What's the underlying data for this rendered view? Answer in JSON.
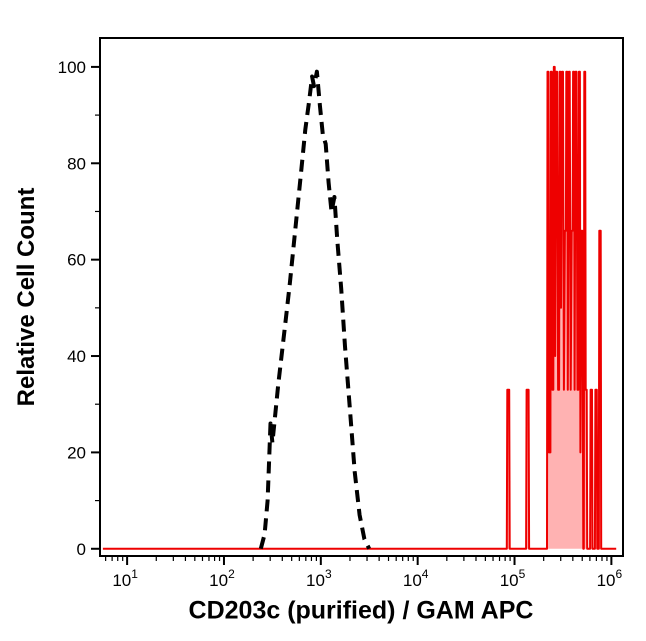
{
  "chart_data": {
    "type": "line",
    "title": "",
    "xlabel": "CD203c (purified) / GAM APC",
    "ylabel": "Relative Cell Count",
    "x_scale": "log10",
    "x_ticks_exponents": [
      1,
      2,
      3,
      4,
      5,
      6
    ],
    "y_ticks": [
      0,
      20,
      40,
      60,
      80,
      100
    ],
    "y_minor_ticks": [
      10,
      30,
      50,
      70,
      90
    ],
    "xlim_log10": [
      0.72,
      6.12
    ],
    "ylim": [
      -1.5,
      106
    ],
    "grid": false,
    "legend": "none",
    "axis_color": "#000000",
    "series": [
      {
        "name": "red_filled_stained_sample",
        "color": "#ee0000",
        "width": 2,
        "dash": null,
        "fill": "rgba(255,0,0,0.3)",
        "points": [
          [
            0.75,
            0
          ],
          [
            4.9,
            0
          ],
          [
            4.92,
            0
          ],
          [
            4.925,
            33
          ],
          [
            4.945,
            33
          ],
          [
            4.95,
            0
          ],
          [
            5.12,
            0
          ],
          [
            5.125,
            33
          ],
          [
            5.145,
            33
          ],
          [
            5.15,
            0
          ],
          [
            5.32,
            0
          ],
          [
            5.335,
            0
          ],
          [
            5.34,
            99
          ],
          [
            5.35,
            99
          ],
          [
            5.355,
            20
          ],
          [
            5.37,
            20
          ],
          [
            5.375,
            99
          ],
          [
            5.385,
            99
          ],
          [
            5.39,
            33
          ],
          [
            5.4,
            33
          ],
          [
            5.405,
            100
          ],
          [
            5.415,
            100
          ],
          [
            5.42,
            40
          ],
          [
            5.43,
            99
          ],
          [
            5.44,
            99
          ],
          [
            5.45,
            33
          ],
          [
            5.46,
            33
          ],
          [
            5.465,
            99
          ],
          [
            5.475,
            99
          ],
          [
            5.48,
            50
          ],
          [
            5.49,
            99
          ],
          [
            5.5,
            99
          ],
          [
            5.51,
            33
          ],
          [
            5.52,
            66
          ],
          [
            5.53,
            66
          ],
          [
            5.535,
            99
          ],
          [
            5.545,
            99
          ],
          [
            5.55,
            33
          ],
          [
            5.56,
            99
          ],
          [
            5.57,
            99
          ],
          [
            5.58,
            33
          ],
          [
            5.59,
            66
          ],
          [
            5.6,
            66
          ],
          [
            5.605,
            99
          ],
          [
            5.615,
            99
          ],
          [
            5.62,
            33
          ],
          [
            5.63,
            99
          ],
          [
            5.64,
            99
          ],
          [
            5.65,
            33
          ],
          [
            5.66,
            33
          ],
          [
            5.665,
            99
          ],
          [
            5.675,
            99
          ],
          [
            5.68,
            20
          ],
          [
            5.69,
            66
          ],
          [
            5.7,
            66
          ],
          [
            5.71,
            0
          ],
          [
            5.715,
            0
          ],
          [
            5.72,
            99
          ],
          [
            5.73,
            99
          ],
          [
            5.735,
            33
          ],
          [
            5.745,
            33
          ],
          [
            5.75,
            0
          ],
          [
            5.78,
            0
          ],
          [
            5.785,
            33
          ],
          [
            5.8,
            33
          ],
          [
            5.805,
            0
          ],
          [
            5.83,
            0
          ],
          [
            5.835,
            33
          ],
          [
            5.85,
            33
          ],
          [
            5.855,
            0
          ],
          [
            5.87,
            0
          ],
          [
            5.875,
            66
          ],
          [
            5.89,
            66
          ],
          [
            5.895,
            0
          ],
          [
            6.05,
            0
          ]
        ]
      },
      {
        "name": "black_dashed_control",
        "color": "#000000",
        "width": 4,
        "dash": [
          12,
          7
        ],
        "fill": "none",
        "points": [
          [
            2.38,
            0
          ],
          [
            2.42,
            3
          ],
          [
            2.45,
            10
          ],
          [
            2.48,
            26
          ],
          [
            2.5,
            22
          ],
          [
            2.53,
            28
          ],
          [
            2.56,
            34
          ],
          [
            2.6,
            41
          ],
          [
            2.64,
            48
          ],
          [
            2.68,
            55
          ],
          [
            2.72,
            63
          ],
          [
            2.76,
            71
          ],
          [
            2.8,
            79
          ],
          [
            2.84,
            87
          ],
          [
            2.88,
            93
          ],
          [
            2.91,
            98
          ],
          [
            2.93,
            96
          ],
          [
            2.96,
            99
          ],
          [
            2.99,
            92
          ],
          [
            3.02,
            86
          ],
          [
            3.05,
            84
          ],
          [
            3.08,
            76
          ],
          [
            3.11,
            70
          ],
          [
            3.14,
            73
          ],
          [
            3.17,
            64
          ],
          [
            3.21,
            54
          ],
          [
            3.25,
            42
          ],
          [
            3.3,
            29
          ],
          [
            3.35,
            16
          ],
          [
            3.4,
            7
          ],
          [
            3.45,
            2
          ],
          [
            3.5,
            0
          ]
        ]
      }
    ]
  }
}
